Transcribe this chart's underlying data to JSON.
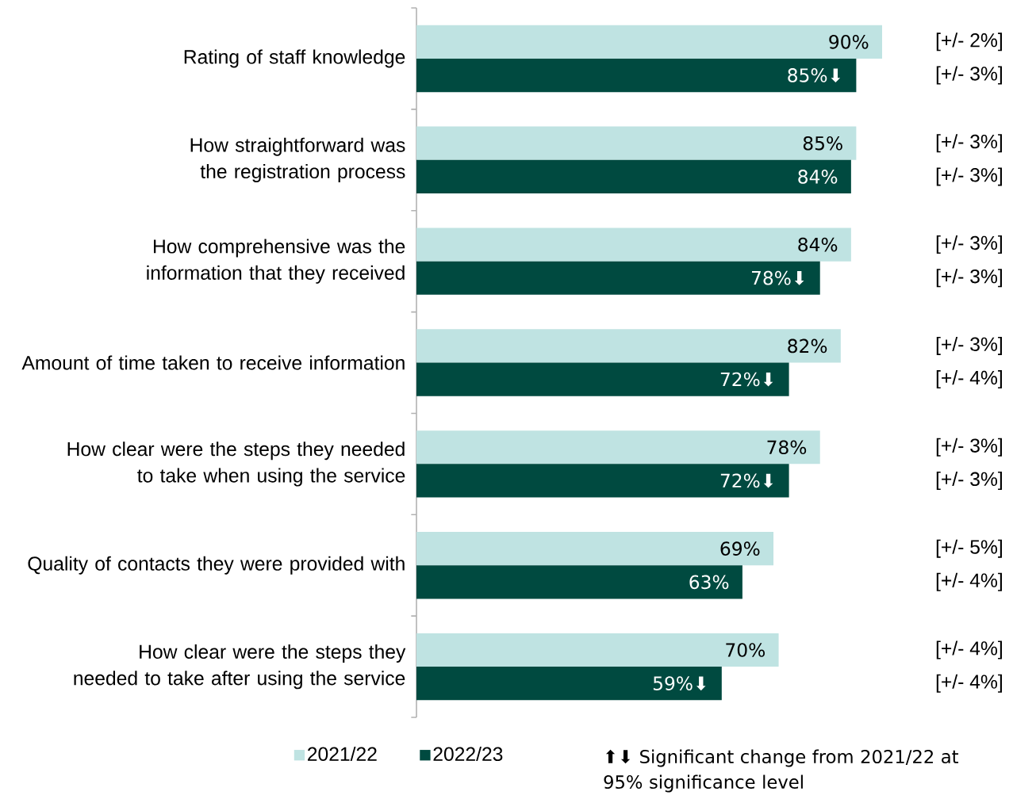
{
  "chart_data": {
    "type": "bar",
    "orientation": "horizontal",
    "categories": [
      "Rating of staff knowledge",
      "How straightforward was the registration process",
      "How comprehensive was the information that they received",
      "Amount of time taken to receive information",
      "How clear were the steps they needed to take when using the service",
      "Quality of contacts they were provided with",
      "How clear were the steps they needed to take after using the service"
    ],
    "series": [
      {
        "name": "2021/22",
        "color": "#bfe3e2",
        "values": [
          90,
          85,
          84,
          82,
          78,
          69,
          70
        ],
        "value_labels": [
          "90%",
          "85%",
          "84%",
          "82%",
          "78%",
          "69%",
          "70%"
        ]
      },
      {
        "name": "2022/23",
        "color": "#004a40",
        "values": [
          85,
          84,
          78,
          72,
          72,
          63,
          59
        ],
        "value_labels": [
          "85%⬇",
          "84%",
          "78%⬇",
          "72%⬇",
          "72%⬇",
          "63%",
          "59%⬇"
        ]
      }
    ],
    "tick_labels": "y",
    "grid": false,
    "legend": "bottom",
    "annotations": [
      "[+/- 2%]",
      "[+/- 3%]",
      "[+/- 3%]",
      "[+/- 3%]",
      "[+/- 3%]",
      "[+/- 3%]",
      "[+/- 3%]",
      "[+/- 4%]",
      "[+/- 3%]",
      "[+/- 3%]",
      "[+/- 5%]",
      "[+/- 4%]",
      "[+/- 4%]",
      "[+/- 4%]",
      "⬆⬇ Significant change from 2021/22 at 95% significance level"
    ]
  }
}
